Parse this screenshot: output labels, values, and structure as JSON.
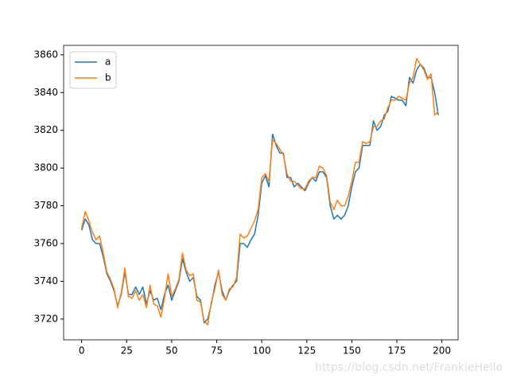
{
  "chart_data": {
    "type": "line",
    "x": [
      0,
      2,
      4,
      6,
      8,
      10,
      12,
      14,
      16,
      18,
      20,
      22,
      24,
      26,
      28,
      30,
      32,
      34,
      36,
      38,
      40,
      42,
      44,
      46,
      48,
      50,
      52,
      54,
      56,
      58,
      60,
      62,
      64,
      66,
      68,
      70,
      72,
      74,
      76,
      78,
      80,
      82,
      84,
      86,
      88,
      90,
      92,
      94,
      96,
      98,
      100,
      102,
      104,
      106,
      108,
      110,
      112,
      114,
      116,
      118,
      120,
      122,
      124,
      126,
      128,
      130,
      132,
      134,
      136,
      138,
      140,
      142,
      144,
      146,
      148,
      150,
      152,
      154,
      156,
      158,
      160,
      162,
      164,
      166,
      168,
      170,
      172,
      174,
      176,
      178,
      180,
      182,
      184,
      186,
      188,
      190,
      192,
      194,
      196,
      198
    ],
    "series": [
      {
        "name": "a",
        "color": "#1f77b4",
        "values": [
          3767,
          3773,
          3770,
          3762,
          3760,
          3760,
          3753,
          3744,
          3740,
          3735,
          3727,
          3733,
          3745,
          3733,
          3733,
          3737,
          3733,
          3737,
          3728,
          3735,
          3730,
          3731,
          3725,
          3733,
          3738,
          3730,
          3735,
          3740,
          3752,
          3745,
          3740,
          3742,
          3732,
          3730,
          3718,
          3720,
          3728,
          3738,
          3745,
          3735,
          3730,
          3735,
          3738,
          3740,
          3760,
          3760,
          3758,
          3762,
          3765,
          3775,
          3792,
          3796,
          3790,
          3818,
          3812,
          3808,
          3808,
          3795,
          3795,
          3790,
          3792,
          3790,
          3788,
          3792,
          3795,
          3793,
          3798,
          3798,
          3795,
          3780,
          3773,
          3775,
          3773,
          3775,
          3780,
          3790,
          3798,
          3800,
          3812,
          3812,
          3812,
          3825,
          3820,
          3822,
          3828,
          3830,
          3838,
          3837,
          3836,
          3836,
          3833,
          3848,
          3845,
          3852,
          3855,
          3853,
          3848,
          3848,
          3840,
          3828
        ]
      },
      {
        "name": "b",
        "color": "#ff7f0e",
        "values": [
          3768,
          3777,
          3772,
          3766,
          3762,
          3764,
          3755,
          3745,
          3741,
          3736,
          3726,
          3734,
          3747,
          3732,
          3731,
          3735,
          3730,
          3733,
          3726,
          3738,
          3728,
          3727,
          3721,
          3731,
          3744,
          3732,
          3736,
          3741,
          3755,
          3746,
          3743,
          3744,
          3730,
          3729,
          3719,
          3717,
          3729,
          3736,
          3746,
          3733,
          3730,
          3736,
          3737,
          3742,
          3765,
          3763,
          3764,
          3768,
          3772,
          3778,
          3795,
          3797,
          3793,
          3815,
          3813,
          3810,
          3807,
          3797,
          3793,
          3793,
          3791,
          3789,
          3789,
          3793,
          3795,
          3795,
          3801,
          3800,
          3796,
          3782,
          3778,
          3783,
          3780,
          3780,
          3785,
          3793,
          3803,
          3803,
          3814,
          3813,
          3814,
          3822,
          3822,
          3825,
          3826,
          3832,
          3836,
          3836,
          3838,
          3837,
          3836,
          3845,
          3848,
          3858,
          3855,
          3852,
          3847,
          3850,
          3828,
          3830
        ]
      }
    ],
    "xlim": [
      -10,
      209
    ],
    "ylim": [
      3709,
      3865
    ],
    "xticks": [
      0,
      25,
      50,
      75,
      100,
      125,
      150,
      175,
      200
    ],
    "yticks": [
      3720,
      3740,
      3760,
      3780,
      3800,
      3820,
      3840,
      3860
    ],
    "legend": "upper left",
    "watermark": "https://blog.csdn.net/FrankieHello"
  }
}
